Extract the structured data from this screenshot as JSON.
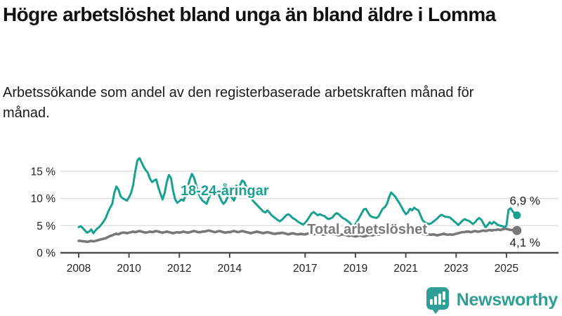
{
  "title": "Högre arbetslöshet bland unga än bland äldre i Lomma",
  "subtitle": "Arbetssökande som andel av den registerbaserade arbetskraften månad för månad.",
  "footer": {
    "brand": "Newsworthy",
    "brand_color": "#2f9e96"
  },
  "chart_data": {
    "type": "line",
    "title": "Högre arbetslöshet bland unga än bland äldre i Lomma",
    "xlabel": "",
    "ylabel": "",
    "unit": "%",
    "grid": true,
    "legend_position": "inline-labels",
    "x_start_year": 2008,
    "x_months_per_point": 1,
    "x_end": "2025-06",
    "ylim": [
      0,
      18
    ],
    "yticks": [
      {
        "v": 0,
        "label": "0 %"
      },
      {
        "v": 5,
        "label": "5 %"
      },
      {
        "v": 10,
        "label": "10 %"
      },
      {
        "v": 15,
        "label": "15 %"
      }
    ],
    "xticks": [
      {
        "year": 2008,
        "label": "2008"
      },
      {
        "year": 2010,
        "label": "2010"
      },
      {
        "year": 2012,
        "label": "2012"
      },
      {
        "year": 2014,
        "label": "2014"
      },
      {
        "year": 2017,
        "label": "2017"
      },
      {
        "year": 2019,
        "label": "2019"
      },
      {
        "year": 2021,
        "label": "2021"
      },
      {
        "year": 2023,
        "label": "2023"
      },
      {
        "year": 2025,
        "label": "2025"
      }
    ],
    "annotations": [
      {
        "text": "18-24-åringar",
        "year": 2012.05,
        "value": 11.5,
        "color": "#18a091"
      },
      {
        "text": "Total arbetslöshet",
        "year": 2017.08,
        "value": 4.4,
        "color": "#7a7a7a"
      }
    ],
    "series": [
      {
        "name": "18-24-åringar",
        "color": "#18a091",
        "end_label": "6,9 %",
        "end_value": 6.9,
        "values": [
          4.7,
          4.9,
          4.5,
          4.1,
          3.7,
          3.9,
          4.3,
          3.6,
          4.1,
          4.5,
          4.8,
          5.3,
          5.8,
          6.5,
          7.5,
          8.3,
          9.0,
          11.0,
          12.2,
          11.6,
          10.4,
          10.0,
          9.8,
          9.6,
          10.2,
          11.0,
          12.5,
          15.0,
          17.0,
          17.4,
          16.6,
          15.8,
          15.2,
          14.7,
          13.6,
          13.0,
          13.3,
          13.5,
          12.0,
          10.9,
          9.8,
          11.0,
          13.0,
          14.3,
          13.8,
          11.5,
          9.8,
          9.2,
          9.5,
          9.8,
          9.6,
          10.5,
          12.0,
          13.5,
          14.5,
          13.8,
          12.5,
          11.0,
          10.2,
          9.6,
          9.3,
          9.0,
          10.0,
          11.0,
          11.8,
          12.2,
          11.5,
          10.5,
          9.6,
          9.0,
          9.4,
          10.2,
          10.8,
          10.2,
          9.6,
          10.5,
          11.5,
          12.5,
          13.3,
          13.0,
          12.0,
          11.0,
          10.2,
          9.6,
          9.2,
          8.8,
          8.4,
          8.0,
          7.6,
          7.4,
          7.8,
          7.4,
          6.9,
          6.6,
          6.3,
          6.0,
          5.8,
          6.1,
          6.5,
          6.9,
          7.1,
          6.8,
          6.4,
          6.2,
          5.9,
          5.6,
          5.4,
          5.2,
          5.5,
          6.0,
          6.6,
          7.2,
          7.5,
          7.2,
          6.9,
          7.1,
          6.9,
          6.8,
          6.5,
          6.2,
          6.3,
          6.5,
          7.0,
          7.3,
          7.1,
          6.7,
          6.4,
          6.2,
          5.9,
          5.6,
          5.2,
          4.9,
          5.3,
          5.9,
          6.6,
          7.3,
          8.0,
          8.1,
          7.4,
          6.8,
          6.6,
          6.5,
          6.4,
          6.7,
          7.4,
          8.1,
          8.4,
          9.0,
          10.2,
          11.1,
          10.7,
          10.3,
          9.7,
          9.1,
          8.4,
          7.7,
          7.1,
          7.4,
          8.1,
          7.8,
          8.3,
          8.0,
          7.8,
          6.9,
          6.0,
          5.6,
          5.4,
          5.3,
          5.4,
          5.7,
          6.0,
          6.3,
          6.7,
          7.0,
          6.8,
          6.6,
          6.6,
          6.5,
          6.2,
          5.8,
          5.5,
          5.1,
          5.5,
          5.9,
          6.2,
          6.0,
          5.9,
          5.6,
          5.3,
          5.6,
          6.1,
          6.4,
          6.1,
          5.4,
          4.7,
          5.1,
          5.6,
          5.3,
          5.7,
          5.4,
          5.1,
          5.0,
          4.9,
          4.7,
          5.0,
          7.9,
          8.2,
          7.6,
          7.2,
          6.9
        ]
      },
      {
        "name": "Total arbetslöshet",
        "color": "#787878",
        "end_label": "4,1 %",
        "end_value": 4.1,
        "values": [
          2.2,
          2.2,
          2.1,
          2.1,
          2.0,
          2.1,
          2.2,
          2.1,
          2.2,
          2.3,
          2.4,
          2.5,
          2.6,
          2.7,
          2.9,
          3.1,
          3.2,
          3.4,
          3.5,
          3.4,
          3.6,
          3.7,
          3.7,
          3.6,
          3.7,
          3.8,
          3.9,
          3.8,
          3.9,
          4.0,
          3.9,
          3.8,
          3.7,
          3.8,
          3.9,
          3.8,
          3.9,
          4.0,
          3.9,
          3.8,
          3.7,
          3.8,
          3.9,
          3.8,
          3.7,
          3.6,
          3.7,
          3.8,
          3.7,
          3.8,
          3.9,
          3.8,
          3.7,
          3.8,
          3.9,
          4.0,
          3.9,
          3.8,
          3.8,
          3.9,
          3.9,
          4.0,
          4.1,
          4.0,
          3.9,
          3.8,
          3.9,
          4.0,
          3.9,
          3.8,
          3.7,
          3.8,
          3.8,
          3.9,
          4.0,
          3.9,
          3.8,
          3.9,
          4.0,
          3.9,
          3.8,
          3.7,
          3.6,
          3.7,
          3.8,
          3.9,
          3.8,
          3.7,
          3.6,
          3.7,
          3.8,
          3.7,
          3.6,
          3.5,
          3.5,
          3.6,
          3.6,
          3.7,
          3.6,
          3.5,
          3.4,
          3.5,
          3.6,
          3.5,
          3.4,
          3.4,
          3.5,
          3.4,
          3.4,
          3.5,
          3.6,
          3.5,
          3.4,
          3.5,
          3.6,
          3.5,
          3.4,
          3.3,
          3.4,
          3.5,
          3.4,
          3.5,
          3.4,
          3.3,
          3.2,
          3.3,
          3.4,
          3.3,
          3.2,
          3.1,
          3.2,
          3.1,
          3.0,
          3.1,
          3.2,
          3.1,
          3.0,
          3.1,
          3.2,
          3.3,
          3.2,
          3.3,
          3.4,
          3.3,
          3.4,
          3.5,
          3.6,
          3.8,
          3.9,
          4.0,
          3.9,
          3.8,
          3.9,
          3.8,
          3.7,
          3.8,
          3.9,
          3.8,
          3.7,
          3.8,
          3.7,
          3.6,
          3.7,
          3.6,
          3.5,
          3.4,
          3.3,
          3.4,
          3.3,
          3.4,
          3.3,
          3.2,
          3.3,
          3.4,
          3.5,
          3.4,
          3.3,
          3.4,
          3.3,
          3.4,
          3.5,
          3.6,
          3.7,
          3.8,
          3.8,
          3.9,
          3.9,
          3.8,
          3.9,
          4.0,
          3.9,
          3.9,
          4.0,
          4.1,
          4.0,
          4.1,
          4.2,
          4.1,
          4.2,
          4.2,
          4.3,
          4.2,
          4.3,
          4.4,
          4.4,
          4.3,
          4.2,
          4.2,
          4.1,
          4.1
        ]
      }
    ]
  }
}
